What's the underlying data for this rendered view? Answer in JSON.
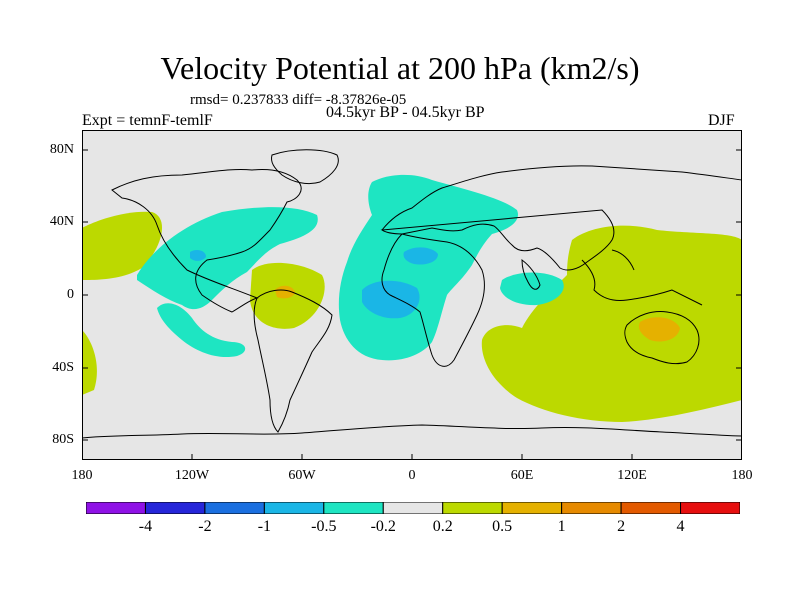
{
  "title": "Velocity Potential at 200 hPa (km2/s)",
  "stats": "rmsd= 0.237833  diff= -8.37826e-05",
  "experiment": "Expt = temnF-temlF",
  "period": "04.5kyr BP - 04.5kyr BP",
  "season": "DJF",
  "map": {
    "lat_ticks": [
      "80N",
      "40N",
      "0",
      "40S",
      "80S"
    ],
    "lon_ticks": [
      "180",
      "120W",
      "60W",
      "0",
      "60E",
      "120E",
      "180"
    ]
  },
  "colorbar": {
    "colors": [
      "#8f12e6",
      "#2626d9",
      "#1a6fe0",
      "#1ab6e6",
      "#1ee5c2",
      "#e6e6e6",
      "#bcd900",
      "#e5b100",
      "#e68a00",
      "#e35a00",
      "#e60f0f"
    ],
    "labels": [
      "-4",
      "-2",
      "-1",
      "-0.5",
      "-0.2",
      "0.2",
      "0.5",
      "1",
      "2",
      "4"
    ]
  },
  "colors": {
    "background": "#e6e6e6",
    "negative_weak": "#1ee5c2",
    "negative_mid": "#1ab6e6",
    "positive_weak": "#bcd900",
    "positive_mid": "#e5b100"
  }
}
